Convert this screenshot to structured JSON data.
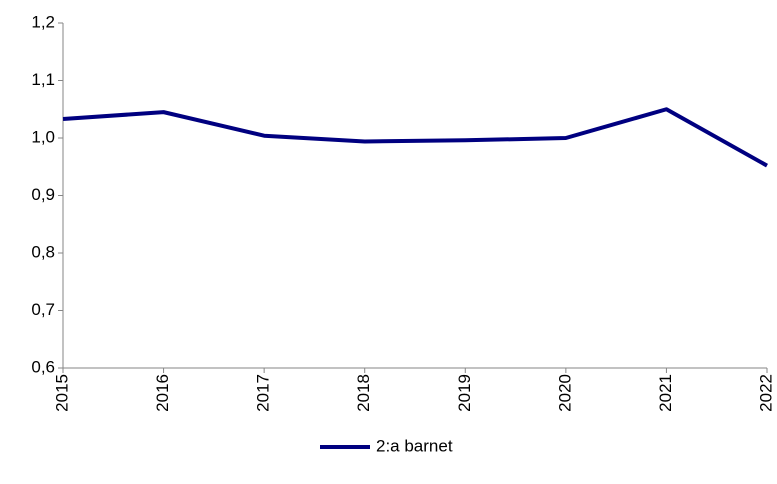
{
  "chart_data": {
    "type": "line",
    "categories": [
      "2015",
      "2016",
      "2017",
      "2018",
      "2019",
      "2020",
      "2021",
      "2022"
    ],
    "series": [
      {
        "name": "2:a barnet",
        "color": "#000080",
        "values": [
          1.033,
          1.045,
          1.004,
          0.994,
          0.996,
          1.0,
          1.05,
          0.952
        ]
      }
    ],
    "ylim": [
      0.6,
      1.2
    ],
    "yticks": [
      {
        "value": 0.6,
        "label": "0,6"
      },
      {
        "value": 0.7,
        "label": "0,7"
      },
      {
        "value": 0.8,
        "label": "0,8"
      },
      {
        "value": 0.9,
        "label": "0,9"
      },
      {
        "value": 1.0,
        "label": "1,0"
      },
      {
        "value": 1.1,
        "label": "1,1"
      },
      {
        "value": 1.2,
        "label": "1,2"
      }
    ],
    "grid": false,
    "legend": "bottom"
  }
}
